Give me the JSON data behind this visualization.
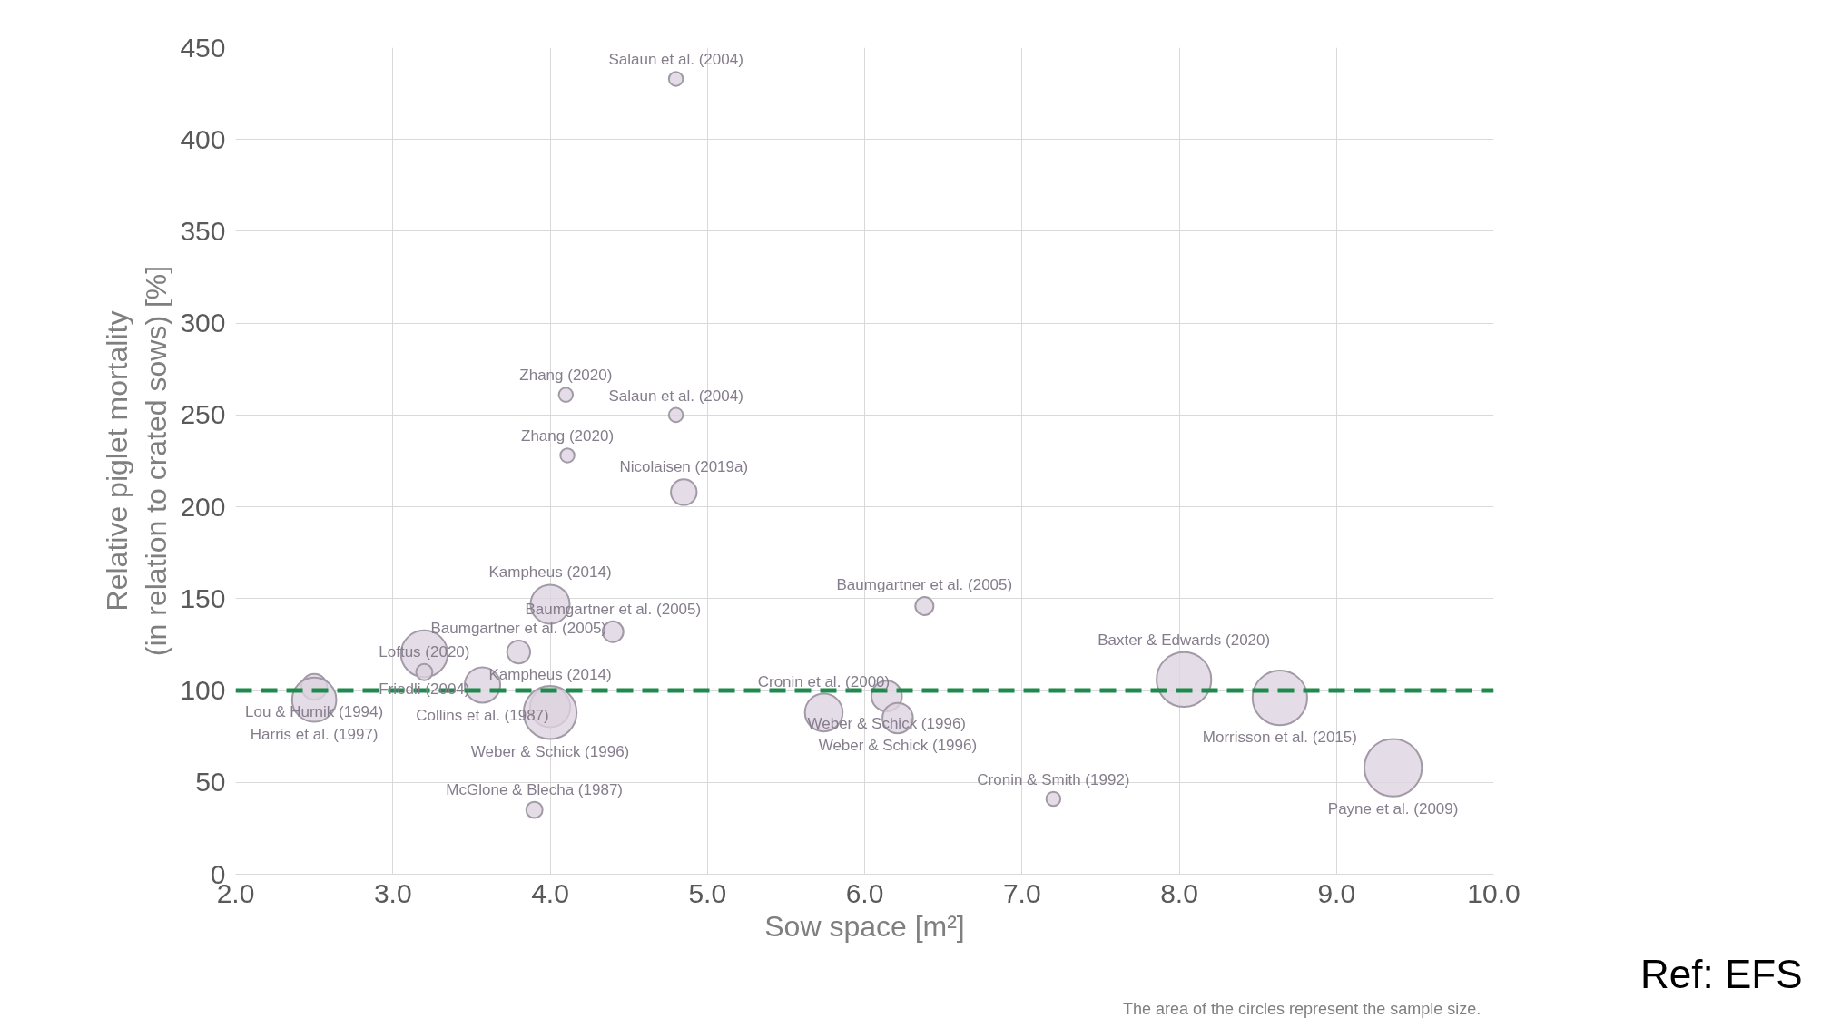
{
  "chart_data": {
    "type": "bubble",
    "xlabel": "Sow space [m²]",
    "ylabel": "Relative piglet mortality\n(in relation to crated sows) [%]",
    "xlim": [
      2,
      10
    ],
    "xticks": [
      {
        "value": 2,
        "label": "2.0"
      },
      {
        "value": 3,
        "label": "3.0"
      },
      {
        "value": 4,
        "label": "4.0"
      },
      {
        "value": 5,
        "label": "5.0"
      },
      {
        "value": 6,
        "label": "6.0"
      },
      {
        "value": 7,
        "label": "7.0"
      },
      {
        "value": 8,
        "label": "8.0"
      },
      {
        "value": 9,
        "label": "9.0"
      },
      {
        "value": 10,
        "label": "10.0"
      }
    ],
    "ylim": [
      0,
      450
    ],
    "yticks": [
      0,
      50,
      100,
      150,
      200,
      250,
      300,
      350,
      400,
      450
    ],
    "grid": true,
    "series": [
      {
        "color": "#ddd3e0",
        "x": [
          4.8,
          4.1,
          4.8,
          4.11,
          4.85,
          4.0,
          4.4,
          3.8,
          3.2,
          3.2,
          3.57,
          2.5,
          2.5,
          4.0,
          4.0,
          3.9,
          6.38,
          5.74,
          6.14,
          6.21,
          7.2,
          8.03,
          8.64,
          9.36
        ],
        "values": [
          433,
          261,
          250,
          228,
          208,
          147,
          132,
          121,
          120,
          110,
          103,
          102,
          95,
          91,
          88,
          35,
          146,
          88,
          97,
          85,
          41,
          106,
          96,
          58
        ],
        "sizes": [
          0.06,
          0.06,
          0.06,
          0.06,
          0.2,
          0.46,
          0.13,
          0.16,
          0.66,
          0.08,
          0.38,
          0.2,
          0.59,
          0.49,
          0.85,
          0.08,
          0.1,
          0.43,
          0.28,
          0.28,
          0.06,
          0.9,
          0.9,
          1
        ]
      }
    ],
    "ref_lines": [
      {
        "axis": "y",
        "value": 100,
        "color": "#1e8a4c",
        "line_style": "dashed"
      }
    ],
    "annotations": [
      {
        "text": "Salaun et al. (2004)",
        "x": 4.8,
        "y": 433
      },
      {
        "text": "Zhang (2020)",
        "x": 4.1,
        "y": 261
      },
      {
        "text": "Salaun et al. (2004)",
        "x": 4.8,
        "y": 250
      },
      {
        "text": "Zhang (2020)",
        "x": 4.11,
        "y": 228
      },
      {
        "text": "Nicolaisen (2019a)",
        "x": 4.85,
        "y": 208
      },
      {
        "text": "Kampheus (2014)",
        "x": 4.0,
        "y": 147
      },
      {
        "text": "Baumgartner et al. (2005)",
        "x": 4.4,
        "y": 132
      },
      {
        "text": "Baumgartner et al. (2005)",
        "x": 3.8,
        "y": 121
      },
      {
        "text": "Friedli (2004)",
        "x": 3.2,
        "y": 120
      },
      {
        "text": "Loftus (2020)",
        "x": 3.2,
        "y": 110
      },
      {
        "text": "Collins et al. (1987)",
        "x": 3.57,
        "y": 103
      },
      {
        "text": "Lou & Hurnik (1994)",
        "x": 2.5,
        "y": 102
      },
      {
        "text": "Harris et al. (1997)",
        "x": 2.5,
        "y": 95
      },
      {
        "text": "Kampheus (2014)",
        "x": 4.0,
        "y": 91
      },
      {
        "text": "Weber & Schick (1996)",
        "x": 4.0,
        "y": 88
      },
      {
        "text": "McGlone & Blecha (1987)",
        "x": 3.9,
        "y": 35
      },
      {
        "text": "Baumgartner et al. (2005)",
        "x": 6.38,
        "y": 146
      },
      {
        "text": "Cronin et al. (2000)",
        "x": 5.74,
        "y": 88
      },
      {
        "text": "Weber & Schick (1996)",
        "x": 6.14,
        "y": 97
      },
      {
        "text": "Weber & Schick (1996)",
        "x": 6.21,
        "y": 85
      },
      {
        "text": "Cronin & Smith (1992)",
        "x": 7.2,
        "y": 41
      },
      {
        "text": "Baxter & Edwards (2020)",
        "x": 8.03,
        "y": 106
      },
      {
        "text": "Morrisson et al. (2015)",
        "x": 8.64,
        "y": 96
      },
      {
        "text": "Payne et al. (2009)",
        "x": 9.36,
        "y": 58
      },
      "The area of the circles represent the sample size.",
      "Ref: EFS"
    ]
  }
}
